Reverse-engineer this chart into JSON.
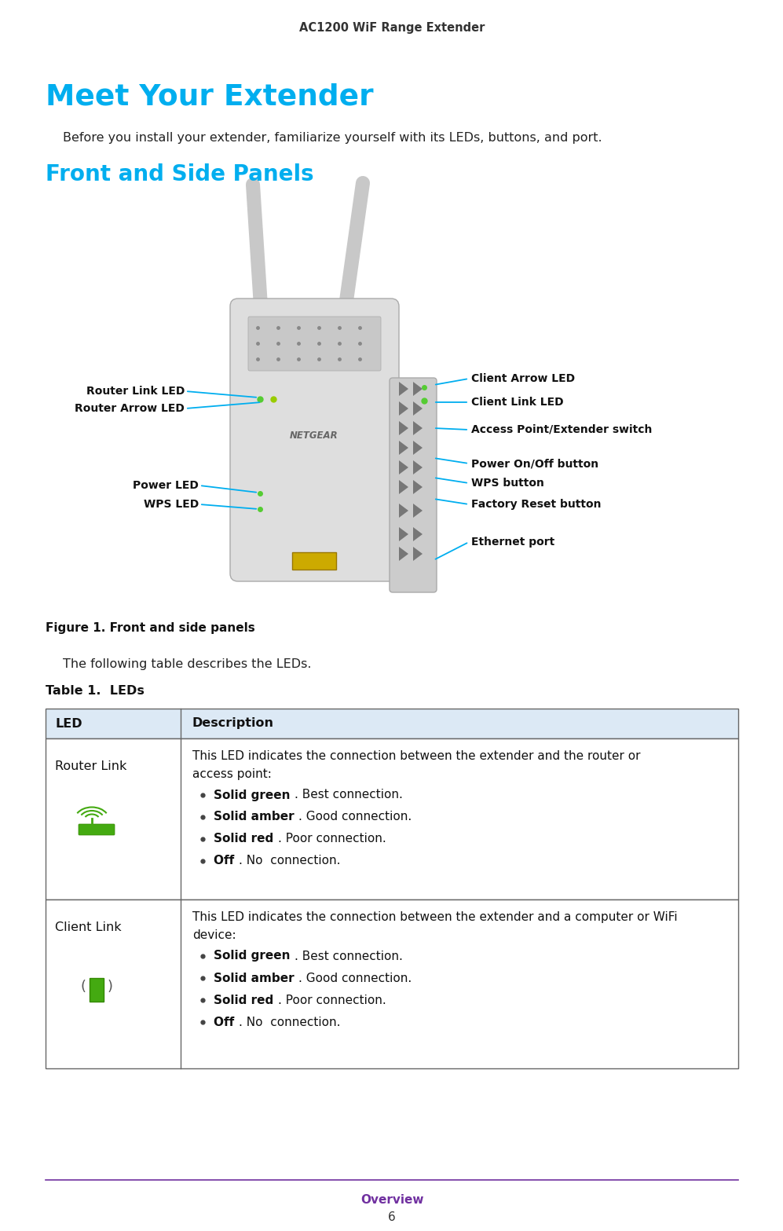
{
  "page_title": "AC1200 WiF Range Extender",
  "page_title_color": "#333333",
  "main_heading": "Meet Your Extender",
  "main_heading_color": "#00AEEF",
  "intro_text": "Before you install your extender, familiarize yourself with its LEDs, buttons, and port.",
  "section_heading": "Front and Side Panels",
  "section_heading_color": "#00AEEF",
  "figure_caption": "Figure 1. Front and side panels",
  "table_title": "Table 1.  LEDs",
  "table_pre_text": "The following table describes the LEDs.",
  "table_header_bg": "#dce9f5",
  "table_row_bg": "#ffffff",
  "table_border_color": "#666666",
  "col1_header": "LED",
  "col2_header": "Description",
  "rows": [
    {
      "led_name": "Router Link",
      "description_intro": "This LED indicates the connection between the extender and the router or\naccess point:",
      "bullets": [
        [
          "Solid green",
          ". Best connection."
        ],
        [
          "Solid amber",
          ". Good connection."
        ],
        [
          "Solid red",
          ". Poor connection."
        ],
        [
          "Off",
          ". No  connection."
        ]
      ]
    },
    {
      "led_name": "Client Link",
      "description_intro": "This LED indicates the connection between the extender and a computer or WiFi\ndevice:",
      "bullets": [
        [
          "Solid green",
          ". Best connection."
        ],
        [
          "Solid amber",
          ". Good connection."
        ],
        [
          "Solid red",
          ". Poor connection."
        ],
        [
          "Off",
          ". No  connection."
        ]
      ]
    }
  ],
  "footer_text": "Overview",
  "footer_page": "6",
  "footer_color": "#7030A0",
  "footer_line_color": "#7030A0"
}
